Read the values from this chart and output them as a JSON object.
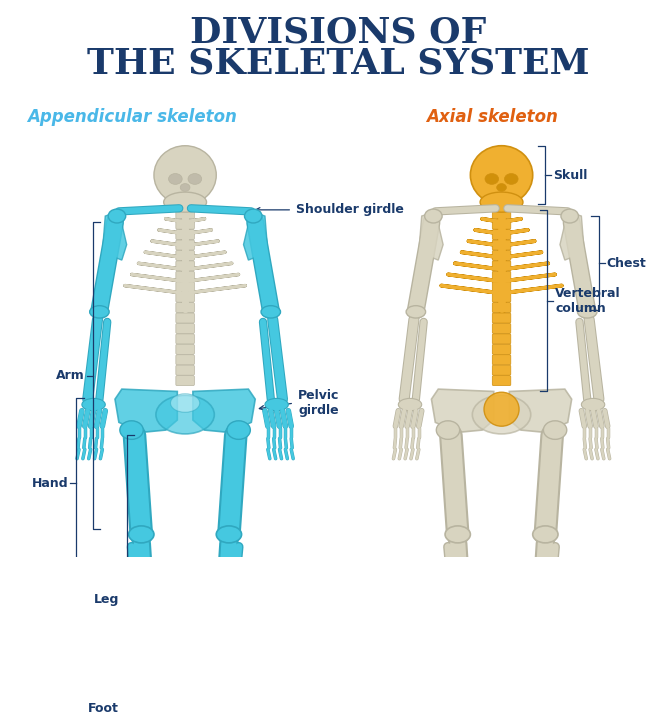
{
  "title_line1": "DIVISIONS OF",
  "title_line2": "THE SKELETAL SYSTEM",
  "title_color": "#1a3a6b",
  "title_fontsize": 26,
  "bg_color": "#ffffff",
  "left_label": "Appendicular skeleton",
  "left_label_color": "#4ab8e8",
  "right_label": "Axial skeleton",
  "right_label_color": "#e06010",
  "appendicular_color": "#45c8e0",
  "appendicular_edge": "#30a8c0",
  "axial_color": "#f0b030",
  "axial_edge": "#d09010",
  "bone_color": "#d8d4c0",
  "bone_edge": "#b8b4a0",
  "annotation_color": "#1a3a6b",
  "annotation_fontsize": 9,
  "label_fontsize": 12
}
